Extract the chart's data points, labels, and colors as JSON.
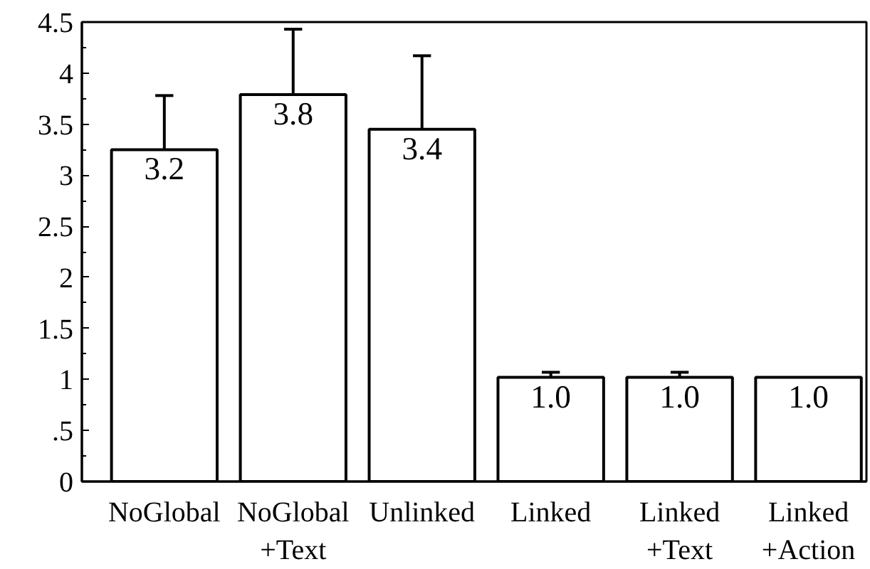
{
  "chart_data": {
    "type": "bar",
    "categories": [
      "NoGlobal",
      "NoGlobal\n+Text",
      "Unlinked",
      "Linked",
      "Linked\n+Text",
      "Linked\n+Action"
    ],
    "values": [
      3.25,
      3.79,
      3.45,
      1.02,
      1.02,
      1.02
    ],
    "value_labels": [
      "3.2",
      "3.8",
      "3.4",
      "1.0",
      "1.0",
      "1.0"
    ],
    "errors": [
      [
        3.25,
        3.78
      ],
      [
        3.79,
        4.43
      ],
      [
        3.45,
        4.17
      ],
      [
        1.02,
        1.07
      ],
      [
        1.02,
        1.07
      ],
      null
    ],
    "colors": [
      "#ffffff",
      "#ffffff",
      "#ffffff",
      "#ffffff",
      "#ffffff",
      "#ffffff"
    ],
    "ylim": [
      0,
      4.5
    ],
    "yticks": [
      0,
      {
        "value": 0.5,
        "label": ".5"
      },
      1,
      1.5,
      2,
      2.5,
      3,
      3.5,
      4,
      4.5
    ],
    "grid": false
  }
}
